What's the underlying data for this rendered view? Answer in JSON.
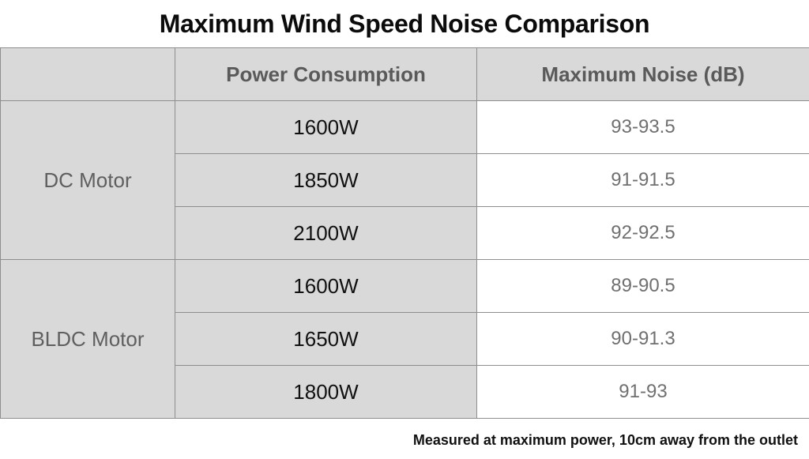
{
  "chart_data": {
    "type": "table",
    "title": "Maximum Wind Speed Noise Comparison",
    "columns": [
      "",
      "Power Consumption",
      "Maximum Noise (dB)"
    ],
    "groups": [
      {
        "label": "DC Motor",
        "rows": [
          {
            "power": "1600W",
            "noise": "93-93.5"
          },
          {
            "power": "1850W",
            "noise": "91-91.5"
          },
          {
            "power": "2100W",
            "noise": "92-92.5"
          }
        ]
      },
      {
        "label": "BLDC Motor",
        "rows": [
          {
            "power": "1600W",
            "noise": "89-90.5"
          },
          {
            "power": "1650W",
            "noise": "90-91.3"
          },
          {
            "power": "1800W",
            "noise": "91-93"
          }
        ]
      }
    ],
    "footnote": "Measured at maximum power, 10cm away from the outlet"
  },
  "colors": {
    "header_bg": "#d9d9d9",
    "label_bg": "#d9d9d9",
    "value_bg": "#ffffff",
    "border": "#8e8e8e"
  }
}
